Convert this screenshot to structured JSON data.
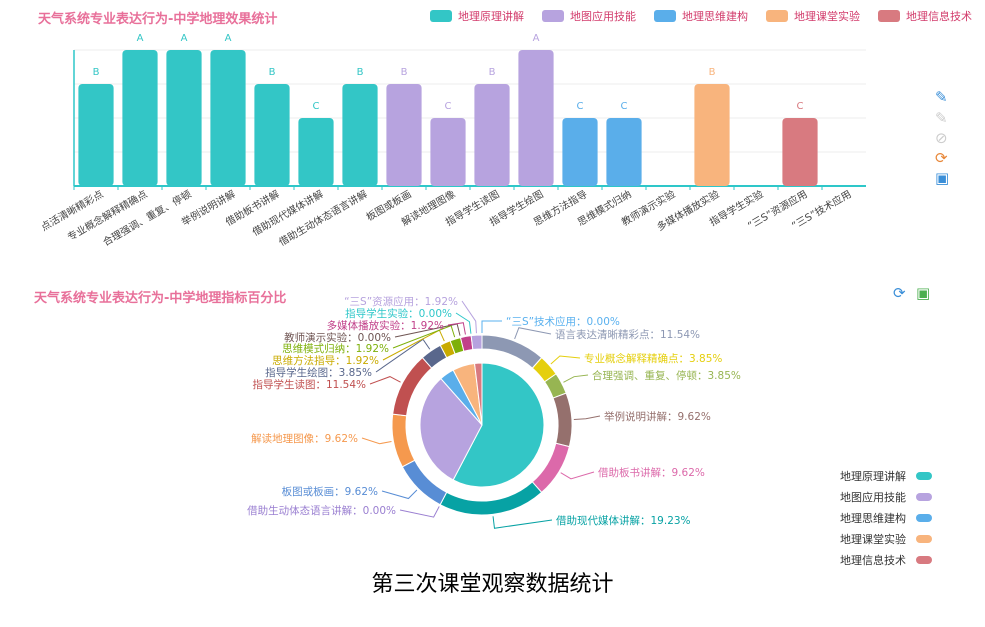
{
  "top": {
    "title": "天气系统专业表达行为-中学地理效果统计",
    "legend": [
      {
        "label": "地理原理讲解",
        "color": "#33c6c6"
      },
      {
        "label": "地图应用技能",
        "color": "#b7a3df"
      },
      {
        "label": "地理思维建构",
        "color": "#5aaeea"
      },
      {
        "label": "地理课堂实验",
        "color": "#f8b47d"
      },
      {
        "label": "地理信息技术",
        "color": "#d87a80"
      }
    ],
    "icons": [
      "pencil-icon",
      "eraser-icon",
      "reset-icon",
      "refresh-icon",
      "save-icon"
    ]
  },
  "chart_data": [
    {
      "type": "bar",
      "title": "天气系统专业表达行为-中学地理效果统计",
      "categories": [
        "点活清晰精彩点",
        "专业概念解释精确点",
        "合理强调、重复、停顿",
        "举例说明讲解",
        "借助板书讲解",
        "借助现代媒体讲解",
        "借助生动体态语言讲解",
        "板图或板画",
        "解读地理图像",
        "指导学生读图",
        "指导学生绘图",
        "思维方法指导",
        "思维模式归纳",
        "教师演示实验",
        "多媒体播放实验",
        "指导学生实验",
        "“三S”资源应用",
        "“三S”技术应用"
      ],
      "values": [
        3,
        4,
        4,
        4,
        3,
        2,
        3,
        3,
        2,
        3,
        4,
        2,
        2,
        0,
        3,
        0,
        2,
        0
      ],
      "grades": [
        "B",
        "A",
        "A",
        "A",
        "B",
        "C",
        "B",
        "B",
        "C",
        "B",
        "A",
        "C",
        "C",
        "",
        "B",
        "",
        "C",
        ""
      ],
      "group": [
        "地理原理讲解",
        "地理原理讲解",
        "地理原理讲解",
        "地理原理讲解",
        "地理原理讲解",
        "地理原理讲解",
        "地理原理讲解",
        "地图应用技能",
        "地图应用技能",
        "地图应用技能",
        "地图应用技能",
        "地理思维建构",
        "地理思维建构",
        "地理课堂实验",
        "地理课堂实验",
        "地理课堂实验",
        "地理信息技术",
        "地理信息技术"
      ],
      "ylim": [
        0,
        4
      ],
      "grid": true
    },
    {
      "type": "pie",
      "title": "天气系统专业表达行为-中学地理指标百分比",
      "inner": [
        {
          "name": "地理原理讲解",
          "value": 57.69,
          "color": "#33c6c6"
        },
        {
          "name": "地图应用技能",
          "value": 30.77,
          "color": "#b7a3df"
        },
        {
          "name": "地理思维建构",
          "value": 3.85,
          "color": "#5aaeea"
        },
        {
          "name": "地理课堂实验",
          "value": 5.77,
          "color": "#f8b47d"
        },
        {
          "name": "地理信息技术",
          "value": 1.92,
          "color": "#d87a80"
        }
      ],
      "outer": [
        {
          "name": "语言表达清晰精彩点",
          "value": 11.54,
          "label": "语言表达清晰精彩点：11.54%",
          "color": "#8d98b3"
        },
        {
          "name": "专业概念解释精确点",
          "value": 3.85,
          "label": "专业概念解释精确点：3.85%",
          "color": "#e5cf0d"
        },
        {
          "name": "合理强调、重复、停顿",
          "value": 3.85,
          "label": "合理强调、重复、停顿：3.85%",
          "color": "#97b552"
        },
        {
          "name": "举例说明讲解",
          "value": 9.62,
          "label": "举例说明讲解：9.62%",
          "color": "#95706d"
        },
        {
          "name": "借助板书讲解",
          "value": 9.62,
          "label": "借助板书讲解：9.62%",
          "color": "#dc69aa"
        },
        {
          "name": "借助现代媒体讲解",
          "value": 19.23,
          "label": "借助现代媒体讲解：19.23%",
          "color": "#07a2a4"
        },
        {
          "name": "借助生动体态语言讲解",
          "value": 0,
          "label": "借助生动体态语言讲解：0.00%",
          "color": "#9a7fd1"
        },
        {
          "name": "板图或板画",
          "value": 9.62,
          "label": "板图或板画：9.62%",
          "color": "#588dd5"
        },
        {
          "name": "解读地理图像",
          "value": 9.62,
          "label": "解读地理图像：9.62%",
          "color": "#f5994e"
        },
        {
          "name": "指导学生读图",
          "value": 11.54,
          "label": "指导学生读图：11.54%",
          "color": "#c05050"
        },
        {
          "name": "指导学生绘图",
          "value": 3.85,
          "label": "指导学生绘图：3.85%",
          "color": "#59678c"
        },
        {
          "name": "思维方法指导",
          "value": 1.92,
          "label": "思维方法指导：1.92%",
          "color": "#c9ab00"
        },
        {
          "name": "思维模式归纳",
          "value": 1.92,
          "label": "思维模式归纳：1.92%",
          "color": "#7eb00a"
        },
        {
          "name": "教师演示实验",
          "value": 0,
          "label": "教师演示实验：0.00%",
          "color": "#6f5553"
        },
        {
          "name": "多媒体播放实验",
          "value": 1.92,
          "label": "多媒体播放实验：1.92%",
          "color": "#c14089"
        },
        {
          "name": "指导学生实验",
          "value": 0,
          "label": "指导学生实验：0.00%",
          "color": "#2ec7c9"
        },
        {
          "name": "“三S”资源应用",
          "value": 1.92,
          "label": "“三S”资源应用：1.92%",
          "color": "#b6a2de"
        },
        {
          "name": "“三S”技术应用",
          "value": 0,
          "label": "“三S”技术应用：0.00%",
          "color": "#5ab1ef"
        }
      ],
      "legend": [
        "地理原理讲解",
        "地图应用技能",
        "地理思维建构",
        "地理课堂实验",
        "地理信息技术"
      ]
    }
  ],
  "bottom": {
    "title": "天气系统专业表达行为-中学地理指标百分比",
    "icons": [
      "refresh-icon",
      "save-icon"
    ]
  },
  "caption": "第三次课堂观察数据统计"
}
